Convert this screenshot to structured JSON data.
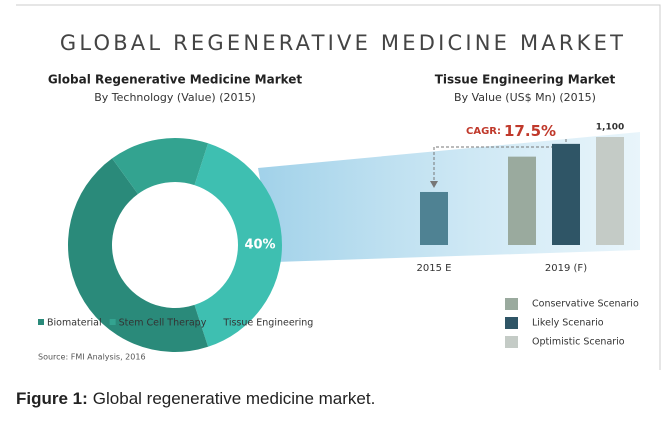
{
  "chart_data": [
    {
      "type": "donut",
      "title": "GLOBAL REGENERATIVE MEDICINE MARKET",
      "subtitle": "Global Regenerative Medicine Market",
      "subtitle2": "By Technology  (Value) (2015)",
      "categories": [
        "Biomaterial",
        "Stem Cell Therapy",
        "Tissue Engineering"
      ],
      "values": [
        45,
        15,
        40
      ],
      "value_labels": [
        null,
        null,
        "40%"
      ],
      "colors": [
        "#2a8a7a",
        "#33a390",
        "#3ebfb1"
      ]
    },
    {
      "type": "bar",
      "title": "Tissue Engineering Market",
      "subtitle": "By Value (US$ Mn) (2015)",
      "annotation_label": "CAGR:",
      "annotation_value": "17.5%",
      "categories": [
        "2015 E",
        "2019 (F)"
      ],
      "base": {
        "values": [
          540,
          null
        ],
        "color": "#4f8293"
      },
      "series": [
        {
          "name": "Conservative Scenario",
          "color": "#9aaa9e",
          "values": [
            null,
            900
          ]
        },
        {
          "name": "Likely Scenario",
          "color": "#2f5566",
          "values": [
            null,
            1030
          ]
        },
        {
          "name": "Optimistic Scenario",
          "color": "#c4cbc6",
          "values": [
            null,
            1100
          ],
          "value_labels": [
            null,
            "1,100"
          ]
        }
      ]
    }
  ],
  "source": "Source:  FMI Analysis, 2016",
  "caption": {
    "label": "Figure 1:",
    "text": "Global regenerative medicine market."
  }
}
